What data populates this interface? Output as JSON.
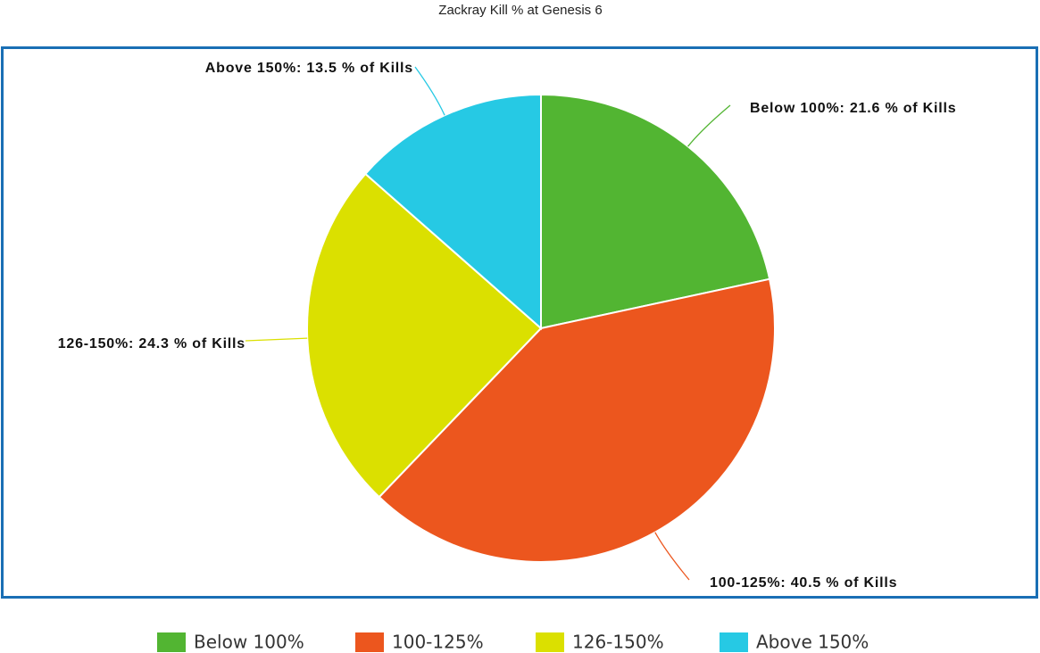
{
  "chart_data": {
    "type": "pie",
    "title": "Zackray Kill % at Genesis 6",
    "categories": [
      "Below 100%",
      "100-125%",
      "126-150%",
      "Above 150%"
    ],
    "values": [
      21.6,
      40.5,
      24.3,
      13.5
    ],
    "value_labels": [
      "Below 100%: 21.6 % of Kills",
      "100-125%: 40.5 % of Kills",
      "126-150%: 24.3 % of Kills",
      "Above 150%: 13.5 % of Kills"
    ],
    "colors": [
      "#52b532",
      "#ec561e",
      "#dbe000",
      "#26c9e4"
    ],
    "legend": "bottom"
  }
}
